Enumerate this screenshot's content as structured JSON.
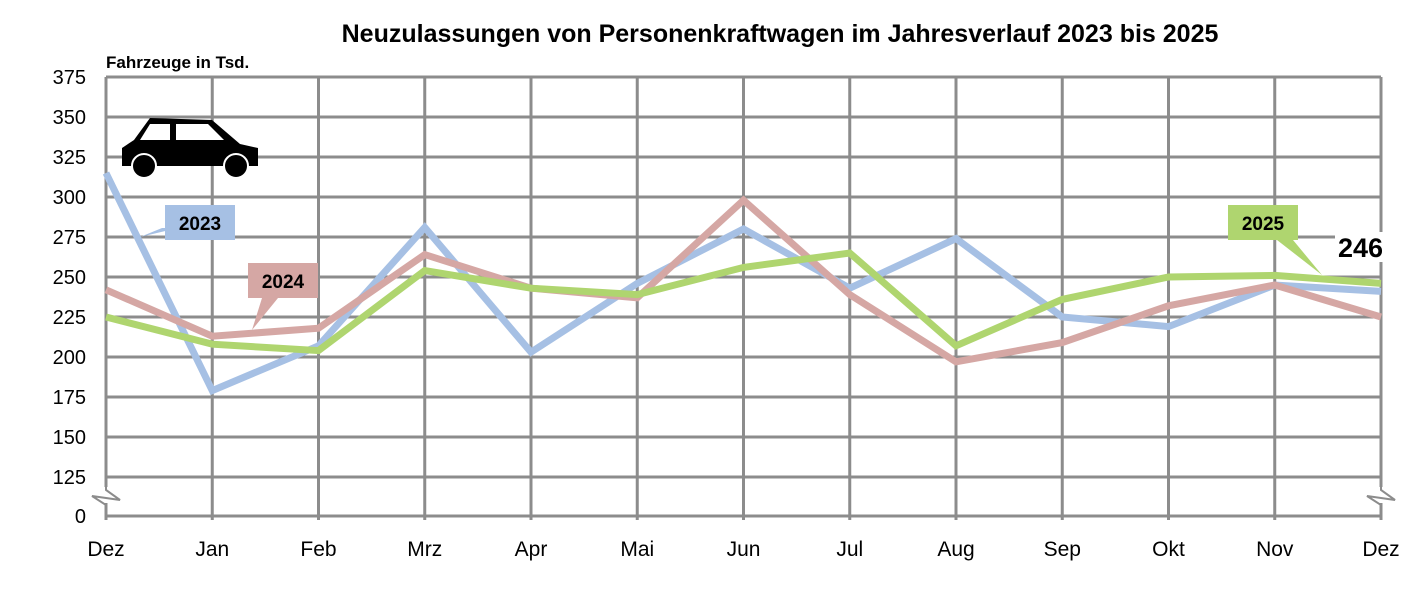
{
  "chart_data": {
    "type": "line",
    "title": "Neuzulassungen von Personenkraftwagen im Jahresverlauf 2023 bis 2025",
    "ylabel": "Fahrzeuge in Tsd.",
    "xlabel": "",
    "categories": [
      "Dez",
      "Jan",
      "Feb",
      "Mrz",
      "Apr",
      "Mai",
      "Jun",
      "Jul",
      "Aug",
      "Sep",
      "Okt",
      "Nov",
      "Dez"
    ],
    "yticks": [
      0,
      125,
      150,
      175,
      200,
      225,
      250,
      275,
      300,
      325,
      350,
      375
    ],
    "ylim": [
      0,
      375
    ],
    "y_axis_break": "between 0 and 125",
    "grid": true,
    "series": [
      {
        "name": "2023",
        "color": "#a6c0e4",
        "values": [
          315,
          179,
          207,
          281,
          203,
          246,
          280,
          243,
          274,
          225,
          219,
          245,
          241
        ]
      },
      {
        "name": "2024",
        "color": "#d5a7a4",
        "values": [
          242,
          213,
          218,
          264,
          243,
          237,
          298,
          239,
          197,
          209,
          232,
          245,
          225
        ]
      },
      {
        "name": "2025",
        "color": "#afd56f",
        "values": [
          225,
          208,
          204,
          254,
          243,
          239,
          256,
          265,
          207,
          236,
          250,
          251,
          246
        ]
      }
    ],
    "annotations": [
      {
        "text": "246",
        "series": "2025",
        "point": "Dez"
      }
    ],
    "icon": "car-icon"
  }
}
